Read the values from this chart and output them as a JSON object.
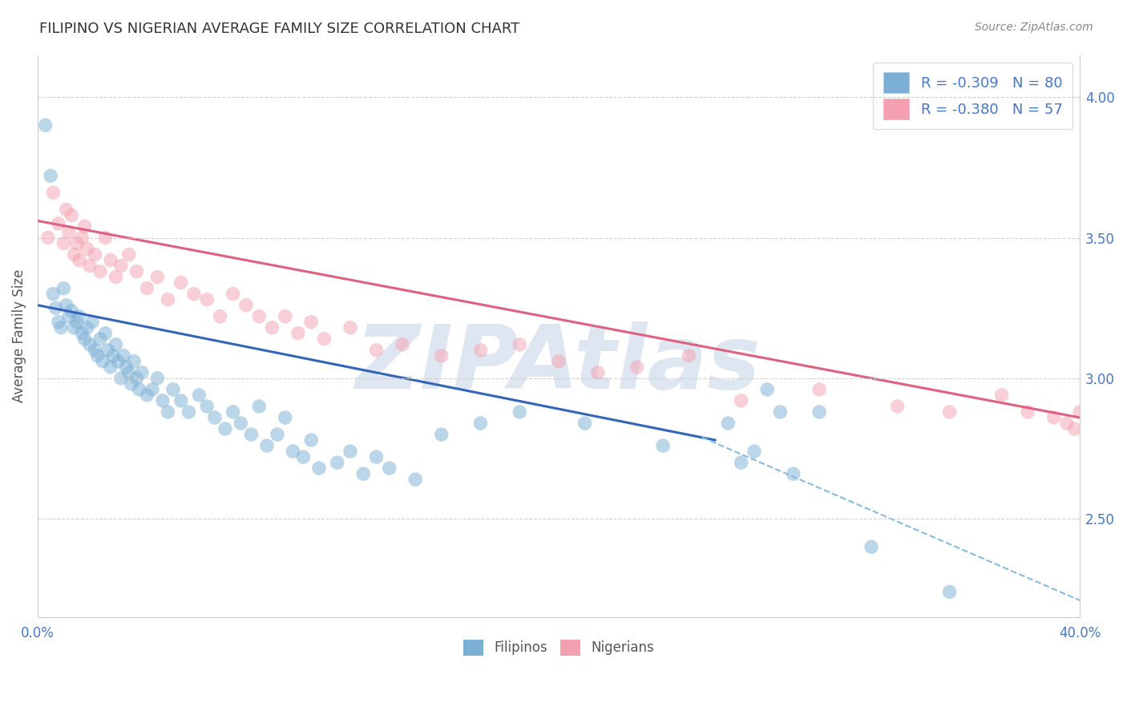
{
  "title": "FILIPINO VS NIGERIAN AVERAGE FAMILY SIZE CORRELATION CHART",
  "source": "Source: ZipAtlas.com",
  "ylabel": "Average Family Size",
  "xlim": [
    0.0,
    40.0
  ],
  "ylim": [
    2.15,
    4.15
  ],
  "yticks_right": [
    2.5,
    3.0,
    3.5,
    4.0
  ],
  "xticks": [
    0.0,
    40.0
  ],
  "xtick_labels": [
    "0.0%",
    "40.0%"
  ],
  "filipinos_color": "#7bafd4",
  "nigerians_color": "#f4a0b0",
  "blue_line_color": "#3366bb",
  "pink_line_color": "#e06080",
  "dashed_line_color": "#88bbdd",
  "title_color": "#333333",
  "axis_color": "#4477cc",
  "legend_blue_label": "R = -0.309   N = 80",
  "legend_pink_label": "R = -0.380   N = 57",
  "filipinos_legend": "Filipinos",
  "nigerians_legend": "Nigerians",
  "watermark": "ZIPAtlas",
  "watermark_color": "#c8d8e8",
  "R_filipinos": -0.309,
  "N_filipinos": 80,
  "R_nigerians": -0.38,
  "N_nigerians": 57,
  "blue_line_x": [
    0.0,
    26.0
  ],
  "blue_line_y": [
    3.26,
    2.78
  ],
  "pink_line_x": [
    0.0,
    40.0
  ],
  "pink_line_y": [
    3.56,
    2.86
  ],
  "dashed_line_x": [
    25.5,
    40.0
  ],
  "dashed_line_y": [
    2.79,
    2.21
  ],
  "background_color": "#ffffff",
  "grid_color": "#cccccc",
  "fil_x": [
    0.3,
    0.5,
    0.6,
    0.7,
    0.8,
    0.9,
    1.0,
    1.1,
    1.2,
    1.3,
    1.4,
    1.5,
    1.6,
    1.7,
    1.8,
    1.9,
    2.0,
    2.1,
    2.2,
    2.3,
    2.4,
    2.5,
    2.6,
    2.7,
    2.8,
    2.9,
    3.0,
    3.1,
    3.2,
    3.3,
    3.4,
    3.5,
    3.6,
    3.7,
    3.8,
    3.9,
    4.0,
    4.2,
    4.4,
    4.6,
    4.8,
    5.0,
    5.2,
    5.5,
    5.8,
    6.2,
    6.5,
    6.8,
    7.2,
    7.5,
    7.8,
    8.2,
    8.5,
    8.8,
    9.2,
    9.5,
    9.8,
    10.2,
    10.5,
    10.8,
    11.5,
    12.0,
    12.5,
    13.0,
    13.5,
    14.5,
    15.5,
    17.0,
    18.5,
    21.0,
    24.0,
    26.5,
    27.0,
    27.5,
    28.0,
    28.5,
    29.0,
    30.0,
    32.0,
    35.0
  ],
  "fil_y": [
    3.9,
    3.72,
    3.3,
    3.25,
    3.2,
    3.18,
    3.32,
    3.26,
    3.22,
    3.24,
    3.18,
    3.2,
    3.22,
    3.16,
    3.14,
    3.18,
    3.12,
    3.2,
    3.1,
    3.08,
    3.14,
    3.06,
    3.16,
    3.1,
    3.04,
    3.08,
    3.12,
    3.06,
    3.0,
    3.08,
    3.04,
    3.02,
    2.98,
    3.06,
    3.0,
    2.96,
    3.02,
    2.94,
    2.96,
    3.0,
    2.92,
    2.88,
    2.96,
    2.92,
    2.88,
    2.94,
    2.9,
    2.86,
    2.82,
    2.88,
    2.84,
    2.8,
    2.9,
    2.76,
    2.8,
    2.86,
    2.74,
    2.72,
    2.78,
    2.68,
    2.7,
    2.74,
    2.66,
    2.72,
    2.68,
    2.64,
    2.8,
    2.84,
    2.88,
    2.84,
    2.76,
    2.84,
    2.7,
    2.74,
    2.96,
    2.88,
    2.66,
    2.88,
    2.4,
    2.24
  ],
  "nig_x": [
    0.4,
    0.6,
    0.8,
    1.0,
    1.1,
    1.2,
    1.3,
    1.4,
    1.5,
    1.6,
    1.7,
    1.8,
    1.9,
    2.0,
    2.2,
    2.4,
    2.6,
    2.8,
    3.0,
    3.2,
    3.5,
    3.8,
    4.2,
    4.6,
    5.0,
    5.5,
    6.0,
    6.5,
    7.0,
    7.5,
    8.0,
    8.5,
    9.0,
    9.5,
    10.0,
    10.5,
    11.0,
    12.0,
    13.0,
    14.0,
    15.5,
    17.0,
    18.5,
    20.0,
    21.5,
    23.0,
    25.0,
    27.0,
    30.0,
    33.0,
    35.0,
    37.0,
    38.0,
    39.0,
    39.5,
    39.8,
    40.0
  ],
  "nig_y": [
    3.5,
    3.66,
    3.55,
    3.48,
    3.6,
    3.52,
    3.58,
    3.44,
    3.48,
    3.42,
    3.5,
    3.54,
    3.46,
    3.4,
    3.44,
    3.38,
    3.5,
    3.42,
    3.36,
    3.4,
    3.44,
    3.38,
    3.32,
    3.36,
    3.28,
    3.34,
    3.3,
    3.28,
    3.22,
    3.3,
    3.26,
    3.22,
    3.18,
    3.22,
    3.16,
    3.2,
    3.14,
    3.18,
    3.1,
    3.12,
    3.08,
    3.1,
    3.12,
    3.06,
    3.02,
    3.04,
    3.08,
    2.92,
    2.96,
    2.9,
    2.88,
    2.94,
    2.88,
    2.86,
    2.84,
    2.82,
    2.88
  ]
}
